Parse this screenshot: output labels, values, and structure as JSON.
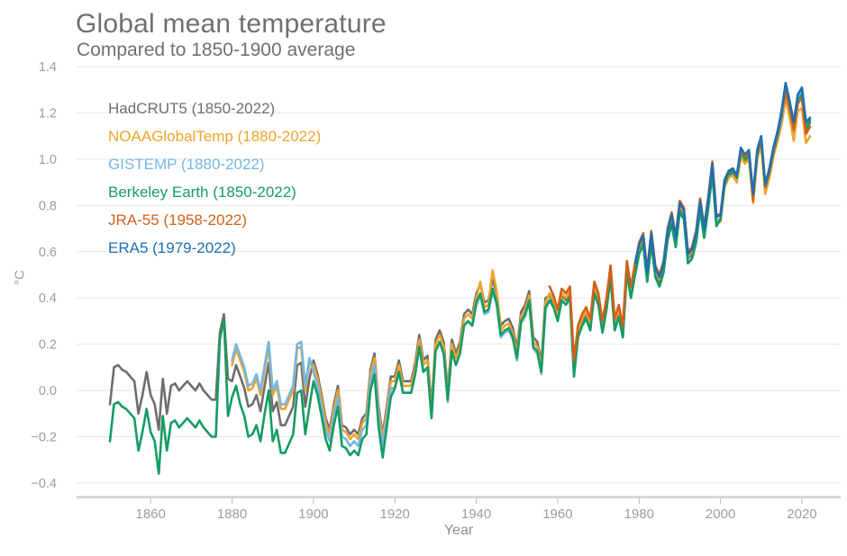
{
  "chart_data": {
    "type": "line",
    "title": "Global mean temperature",
    "subtitle": "Compared to 1850-1900 average",
    "xlabel": "Year",
    "ylabel": "°C",
    "xlim": [
      1850,
      2022
    ],
    "ylim": [
      -0.4,
      1.4
    ],
    "xticks": [
      1860,
      1880,
      1900,
      1920,
      1940,
      1960,
      1980,
      2000,
      2020
    ],
    "yticks": [
      1.4,
      1.2,
      1.0,
      0.8,
      0.6,
      0.4,
      0.2,
      0.0,
      -0.2,
      -0.4
    ],
    "grid": "horizontal",
    "legend_position": "top-left",
    "colors": {
      "title_text": "#707070",
      "grid": "#e7e7e7",
      "axis_line": "#d8d8d8",
      "tick_mark": "#b8b8b8",
      "tick_label": "#9c9c9c",
      "axis_title": "#8f8f8f"
    },
    "series": [
      {
        "name": "hadcrut5",
        "label": "HadCRUT5 (1850-2022)",
        "color": "#6e6e6e",
        "start_year": 1850,
        "values": [
          -0.06,
          0.1,
          0.11,
          0.09,
          0.08,
          0.06,
          0.04,
          -0.1,
          -0.02,
          0.08,
          -0.02,
          -0.06,
          -0.17,
          0.05,
          -0.1,
          0.02,
          0.03,
          0,
          0.02,
          0.04,
          0.02,
          0,
          0.03,
          0,
          -0.02,
          -0.04,
          -0.04,
          0.25,
          0.33,
          0.05,
          0.04,
          0.11,
          0.06,
          0.01,
          -0.07,
          -0.06,
          -0.02,
          -0.09,
          0.02,
          0.12,
          -0.09,
          -0.05,
          -0.15,
          -0.15,
          -0.11,
          -0.07,
          0.11,
          0.12,
          -0.07,
          0.05,
          0.13,
          0.07,
          -0.02,
          -0.12,
          -0.17,
          -0.06,
          0.02,
          -0.15,
          -0.16,
          -0.19,
          -0.17,
          -0.19,
          -0.12,
          -0.1,
          0.09,
          0.16,
          -0.07,
          -0.19,
          -0.07,
          0.06,
          0.06,
          0.13,
          0.04,
          0.04,
          0.04,
          0.12,
          0.24,
          0.13,
          0.15,
          -0.07,
          0.22,
          0.26,
          0.21,
          0,
          0.22,
          0.16,
          0.21,
          0.33,
          0.35,
          0.33,
          0.42,
          0.46,
          0.38,
          0.39,
          0.48,
          0.42,
          0.28,
          0.3,
          0.31,
          0.27,
          0.18,
          0.34,
          0.37,
          0.43,
          0.23,
          0.21,
          0.12,
          0.4,
          0.41,
          0.38,
          0.32,
          0.41,
          0.39,
          0.42,
          0.1,
          0.25,
          0.3,
          0.33,
          0.28,
          0.44,
          0.39,
          0.27,
          0.37,
          0.51,
          0.28,
          0.34,
          0.25,
          0.53,
          0.42,
          0.52,
          0.61,
          0.65,
          0.49,
          0.66,
          0.51,
          0.47,
          0.53,
          0.67,
          0.74,
          0.64,
          0.79,
          0.76,
          0.57,
          0.59,
          0.66,
          0.8,
          0.68,
          0.81,
          0.96,
          0.73,
          0.74,
          0.89,
          0.93,
          0.94,
          0.91,
          1.02,
          0.99,
          1.01,
          0.83,
          1.01,
          1.07,
          0.86,
          0.93,
          1.02,
          1.09,
          1.18,
          1.3,
          1.21,
          1.12,
          1.24,
          1.27,
          1.12,
          1.16
        ]
      },
      {
        "name": "noaaglobaltemp",
        "label": "NOAAGlobalTemp (1880-2022)",
        "color": "#f0a32a",
        "start_year": 1880,
        "values": [
          0.11,
          0.18,
          0.13,
          0.08,
          0,
          0.01,
          0.05,
          -0.02,
          0.09,
          0.19,
          -0.02,
          0.02,
          -0.08,
          -0.08,
          -0.04,
          0,
          0.18,
          0.19,
          0,
          0.12,
          0.11,
          0.05,
          -0.04,
          -0.14,
          -0.19,
          -0.08,
          0,
          -0.17,
          -0.18,
          -0.21,
          -0.19,
          -0.21,
          -0.14,
          -0.12,
          0.07,
          0.14,
          -0.09,
          -0.21,
          -0.09,
          0.04,
          0.04,
          0.11,
          0.02,
          0.02,
          0.02,
          0.1,
          0.22,
          0.11,
          0.13,
          -0.09,
          0.2,
          0.24,
          0.19,
          -0.02,
          0.2,
          0.14,
          0.19,
          0.31,
          0.33,
          0.31,
          0.4,
          0.47,
          0.36,
          0.37,
          0.52,
          0.43,
          0.26,
          0.28,
          0.29,
          0.25,
          0.16,
          0.32,
          0.35,
          0.41,
          0.21,
          0.19,
          0.1,
          0.38,
          0.42,
          0.39,
          0.33,
          0.42,
          0.4,
          0.43,
          0.11,
          0.26,
          0.31,
          0.34,
          0.29,
          0.45,
          0.4,
          0.28,
          0.38,
          0.52,
          0.29,
          0.35,
          0.26,
          0.54,
          0.43,
          0.53,
          0.62,
          0.66,
          0.5,
          0.67,
          0.52,
          0.48,
          0.54,
          0.68,
          0.75,
          0.65,
          0.8,
          0.77,
          0.58,
          0.6,
          0.67,
          0.81,
          0.69,
          0.82,
          0.97,
          0.74,
          0.73,
          0.88,
          0.92,
          0.93,
          0.9,
          1.01,
          0.98,
          1,
          0.81,
          1,
          1.06,
          0.85,
          0.92,
          1.01,
          1.08,
          1.15,
          1.26,
          1.18,
          1.08,
          1.21,
          1.22,
          1.07,
          1.1
        ]
      },
      {
        "name": "gistemp",
        "label": "GISTEMP (1880-2022)",
        "color": "#74b7e2",
        "start_year": 1880,
        "values": [
          0.13,
          0.2,
          0.15,
          0.1,
          0.02,
          0.03,
          0.07,
          0,
          0.11,
          0.21,
          0,
          0.04,
          -0.06,
          -0.06,
          -0.02,
          0.02,
          0.2,
          0.21,
          0.02,
          0.14,
          0.08,
          0.02,
          -0.07,
          -0.17,
          -0.22,
          -0.11,
          -0.03,
          -0.2,
          -0.21,
          -0.24,
          -0.22,
          -0.24,
          -0.17,
          -0.15,
          0.04,
          0.11,
          -0.12,
          -0.24,
          -0.12,
          0.01,
          0.01,
          0.08,
          -0.01,
          -0.01,
          -0.01,
          0.07,
          0.19,
          0.08,
          0.1,
          -0.12,
          0.17,
          0.21,
          0.16,
          -0.05,
          0.17,
          0.11,
          0.16,
          0.28,
          0.3,
          0.28,
          0.37,
          0.41,
          0.33,
          0.34,
          0.43,
          0.37,
          0.23,
          0.25,
          0.26,
          0.22,
          0.13,
          0.29,
          0.32,
          0.38,
          0.18,
          0.16,
          0.07,
          0.35,
          0.39,
          0.36,
          0.3,
          0.39,
          0.37,
          0.4,
          0.08,
          0.23,
          0.28,
          0.31,
          0.26,
          0.42,
          0.37,
          0.25,
          0.35,
          0.49,
          0.26,
          0.32,
          0.23,
          0.51,
          0.4,
          0.5,
          0.59,
          0.63,
          0.47,
          0.64,
          0.49,
          0.45,
          0.51,
          0.65,
          0.72,
          0.62,
          0.77,
          0.74,
          0.55,
          0.57,
          0.64,
          0.78,
          0.66,
          0.79,
          0.94,
          0.71,
          0.75,
          0.9,
          0.94,
          0.95,
          0.92,
          1.03,
          1,
          1.02,
          0.84,
          1.02,
          1.08,
          0.88,
          0.95,
          1.03,
          1.1,
          1.17,
          1.31,
          1.23,
          1.14,
          1.26,
          1.3,
          1.14,
          1.17
        ]
      },
      {
        "name": "berkeley-earth",
        "label": "Berkeley Earth (1850-2022)",
        "color": "#169c62",
        "start_year": 1850,
        "values": [
          -0.22,
          -0.06,
          -0.05,
          -0.07,
          -0.08,
          -0.1,
          -0.12,
          -0.26,
          -0.18,
          -0.08,
          -0.18,
          -0.22,
          -0.36,
          -0.11,
          -0.26,
          -0.14,
          -0.13,
          -0.16,
          -0.14,
          -0.12,
          -0.14,
          -0.16,
          -0.13,
          -0.16,
          -0.18,
          -0.2,
          -0.2,
          0.22,
          0.31,
          -0.11,
          -0.03,
          0.02,
          -0.06,
          -0.11,
          -0.2,
          -0.19,
          -0.15,
          -0.22,
          -0.1,
          0,
          -0.22,
          -0.17,
          -0.27,
          -0.27,
          -0.23,
          -0.19,
          -0.01,
          0,
          -0.19,
          -0.07,
          0.04,
          -0.02,
          -0.11,
          -0.21,
          -0.26,
          -0.15,
          -0.07,
          -0.24,
          -0.25,
          -0.28,
          -0.26,
          -0.28,
          -0.21,
          -0.19,
          0,
          0.07,
          -0.16,
          -0.29,
          -0.16,
          -0.03,
          0.01,
          0.08,
          -0.01,
          -0.01,
          -0.01,
          0.07,
          0.19,
          0.08,
          0.1,
          -0.12,
          0.17,
          0.21,
          0.16,
          -0.04,
          0.17,
          0.11,
          0.16,
          0.28,
          0.3,
          0.28,
          0.38,
          0.42,
          0.34,
          0.35,
          0.44,
          0.38,
          0.24,
          0.26,
          0.27,
          0.23,
          0.14,
          0.3,
          0.33,
          0.39,
          0.19,
          0.17,
          0.08,
          0.36,
          0.39,
          0.36,
          0.3,
          0.39,
          0.37,
          0.4,
          0.06,
          0.23,
          0.28,
          0.31,
          0.26,
          0.42,
          0.37,
          0.25,
          0.35,
          0.49,
          0.26,
          0.32,
          0.23,
          0.51,
          0.4,
          0.5,
          0.59,
          0.63,
          0.47,
          0.64,
          0.49,
          0.45,
          0.51,
          0.65,
          0.72,
          0.62,
          0.77,
          0.74,
          0.55,
          0.57,
          0.64,
          0.78,
          0.66,
          0.79,
          0.94,
          0.71,
          0.74,
          0.89,
          0.94,
          0.95,
          0.92,
          1.03,
          1,
          1.02,
          0.84,
          1.02,
          1.08,
          0.88,
          0.94,
          1.03,
          1.1,
          1.19,
          1.31,
          1.22,
          1.13,
          1.25,
          1.28,
          1.13,
          1.17
        ]
      },
      {
        "name": "jra-55",
        "label": "JRA-55 (1958-2022)",
        "color": "#d2601a",
        "start_year": 1958,
        "values": [
          0.45,
          0.41,
          0.35,
          0.44,
          0.42,
          0.45,
          0.13,
          0.28,
          0.33,
          0.36,
          0.31,
          0.47,
          0.42,
          0.3,
          0.4,
          0.54,
          0.31,
          0.37,
          0.28,
          0.56,
          0.45,
          0.55,
          0.64,
          0.68,
          0.52,
          0.69,
          0.54,
          0.5,
          0.56,
          0.7,
          0.77,
          0.67,
          0.82,
          0.79,
          0.6,
          0.62,
          0.69,
          0.83,
          0.71,
          0.84,
          0.99,
          0.76,
          0.76,
          0.91,
          0.95,
          0.96,
          0.93,
          1.04,
          1.01,
          1.03,
          0.82,
          1.03,
          1.09,
          0.88,
          0.95,
          1.04,
          1.11,
          1.2,
          1.29,
          1.22,
          1.13,
          1.25,
          1.26,
          1.11,
          1.14
        ]
      },
      {
        "name": "era5",
        "label": "ERA5 (1979-2022)",
        "color": "#1f6fb2",
        "start_year": 1979,
        "values": [
          0.55,
          0.63,
          0.67,
          0.51,
          0.68,
          0.53,
          0.49,
          0.55,
          0.69,
          0.76,
          0.66,
          0.81,
          0.78,
          0.59,
          0.61,
          0.68,
          0.82,
          0.7,
          0.83,
          0.98,
          0.75,
          0.76,
          0.91,
          0.95,
          0.96,
          0.93,
          1.05,
          1.02,
          1.04,
          0.85,
          1.04,
          1.1,
          0.89,
          0.96,
          1.05,
          1.12,
          1.21,
          1.33,
          1.25,
          1.16,
          1.28,
          1.31,
          1.16,
          1.18
        ]
      }
    ]
  }
}
